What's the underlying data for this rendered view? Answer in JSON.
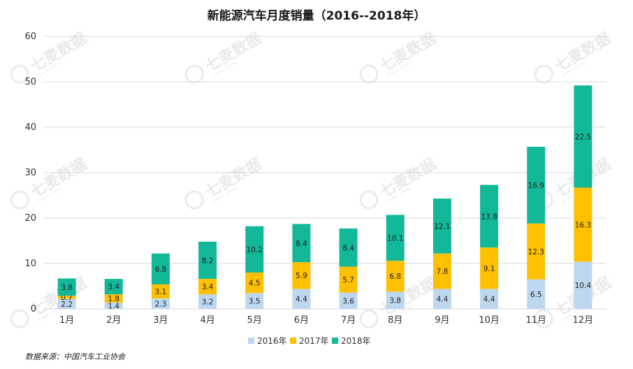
{
  "chart_data": {
    "type": "bar",
    "stacked": true,
    "title": "新能源汽车月度销量（2016--2018年）",
    "categories": [
      "1月",
      "2月",
      "3月",
      "4月",
      "5月",
      "6月",
      "7月",
      "8月",
      "9月",
      "10月",
      "11月",
      "12月"
    ],
    "series": [
      {
        "name": "2016年",
        "color": "#bdd7ee",
        "values": [
          2.2,
          1.4,
          2.3,
          3.2,
          3.5,
          4.4,
          3.6,
          3.8,
          4.4,
          4.4,
          6.5,
          10.4
        ]
      },
      {
        "name": "2017年",
        "color": "#ffc000",
        "values": [
          0.7,
          1.8,
          3.1,
          3.4,
          4.5,
          5.9,
          5.7,
          6.8,
          7.8,
          9.1,
          12.3,
          16.3
        ]
      },
      {
        "name": "2018年",
        "color": "#12b897",
        "values": [
          3.8,
          3.4,
          6.8,
          8.2,
          10.2,
          8.4,
          8.4,
          10.1,
          12.1,
          13.8,
          16.9,
          22.5
        ]
      }
    ],
    "ylim": [
      0,
      60
    ],
    "yticks": [
      0,
      10,
      20,
      30,
      40,
      50,
      60
    ],
    "grid": true,
    "legend": "bottom-center"
  },
  "source_note": "数据来源：中国汽车工业协会",
  "watermark": {
    "text": "七麦数据",
    "sub": "QIMAI DATA"
  }
}
